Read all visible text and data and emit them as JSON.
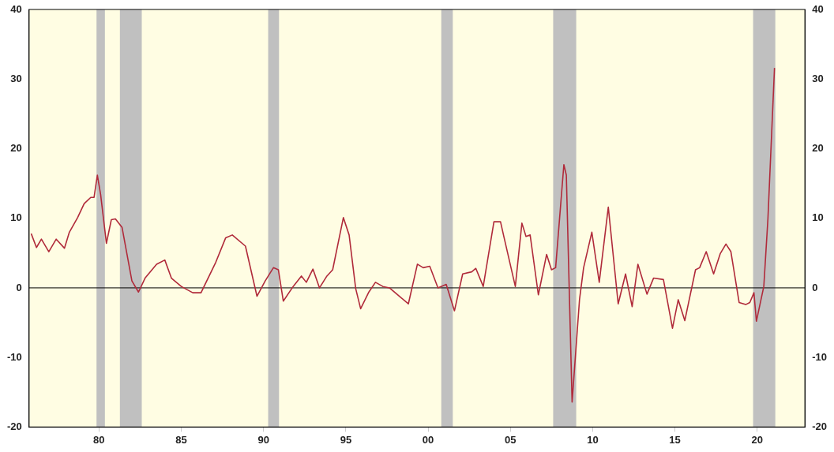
{
  "chart_data": {
    "type": "line",
    "x": [
      1975.88,
      1976.2,
      1976.5,
      1976.95,
      1977.4,
      1977.9,
      1978.2,
      1978.7,
      1979.1,
      1979.5,
      1979.7,
      1979.9,
      1980.1,
      1980.45,
      1980.75,
      1981.0,
      1981.4,
      1982.0,
      1982.4,
      1982.8,
      1983.5,
      1984.0,
      1984.4,
      1985.0,
      1985.7,
      1986.2,
      1987.1,
      1987.7,
      1988.1,
      1988.9,
      1989.6,
      1990.1,
      1990.6,
      1990.9,
      1991.2,
      1991.8,
      1992.3,
      1992.6,
      1993.0,
      1993.4,
      1993.85,
      1994.2,
      1994.85,
      1995.2,
      1995.6,
      1995.9,
      1996.4,
      1996.8,
      1997.25,
      1997.65,
      1998.3,
      1998.8,
      1999.35,
      1999.7,
      2000.1,
      2000.6,
      2001.1,
      2001.6,
      2002.1,
      2002.65,
      2002.9,
      2003.35,
      2004.0,
      2004.4,
      2004.6,
      2005.3,
      2005.7,
      2005.95,
      2006.2,
      2006.7,
      2007.2,
      2007.5,
      2007.75,
      2008.25,
      2008.4,
      2008.75,
      2009.2,
      2009.45,
      2009.95,
      2010.4,
      2010.95,
      2011.55,
      2012.0,
      2012.4,
      2012.75,
      2013.3,
      2013.7,
      2014.3,
      2014.85,
      2015.2,
      2015.6,
      2016.25,
      2016.5,
      2016.9,
      2017.35,
      2017.75,
      2018.1,
      2018.4,
      2018.9,
      2019.3,
      2019.55,
      2019.8,
      2019.95,
      2020.4,
      2020.65,
      2021.05
    ],
    "series": [
      {
        "color": "#b02a3a",
        "values": [
          7.8,
          5.8,
          7.0,
          5.2,
          7.0,
          5.7,
          8.0,
          10.1,
          12.1,
          13.0,
          13.0,
          16.2,
          13.4,
          6.4,
          9.8,
          9.9,
          8.7,
          1.0,
          -0.6,
          1.4,
          3.4,
          4.0,
          1.4,
          0.2,
          -0.7,
          -0.7,
          3.7,
          7.2,
          7.6,
          6.0,
          -1.2,
          1.0,
          2.9,
          2.6,
          -1.9,
          0.2,
          1.7,
          0.8,
          2.7,
          0.0,
          1.7,
          2.6,
          10.1,
          7.6,
          -0.1,
          -3.0,
          -0.6,
          0.8,
          0.2,
          0.0,
          -1.3,
          -2.3,
          3.4,
          2.9,
          3.1,
          0.0,
          0.5,
          -3.3,
          2.0,
          2.3,
          2.8,
          0.2,
          9.5,
          9.5,
          7.4,
          0.2,
          9.3,
          7.4,
          7.6,
          -1.0,
          4.8,
          2.6,
          2.9,
          17.7,
          16.2,
          -16.4,
          -1.7,
          2.9,
          8.0,
          0.8,
          11.6,
          -2.3,
          2.0,
          -2.7,
          3.4,
          -0.9,
          1.4,
          1.2,
          -5.8,
          -1.7,
          -4.7,
          2.6,
          2.9,
          5.2,
          2.0,
          4.9,
          6.3,
          5.2,
          -2.1,
          -2.4,
          -2.1,
          -0.7,
          -4.8,
          0.2,
          9.9,
          31.6
        ]
      }
    ],
    "xlim": [
      1975.75,
      2022.9
    ],
    "xticks": [
      {
        "value": 1980,
        "label": "80"
      },
      {
        "value": 1985,
        "label": "85"
      },
      {
        "value": 1990,
        "label": "90"
      },
      {
        "value": 1995,
        "label": "95"
      },
      {
        "value": 2000,
        "label": "00"
      },
      {
        "value": 2005,
        "label": "05"
      },
      {
        "value": 2010,
        "label": "10"
      },
      {
        "value": 2015,
        "label": "15"
      },
      {
        "value": 2020,
        "label": "20"
      }
    ],
    "ylim": [
      -20,
      40
    ],
    "yticks": [
      -20,
      -10,
      0,
      10,
      20,
      30,
      40
    ],
    "y2lim": [
      -20,
      40
    ],
    "y2ticks": [
      -20,
      -10,
      0,
      10,
      20,
      30,
      40
    ],
    "ref_lines": [
      {
        "axis": "y",
        "value": 0,
        "color": "#000000"
      }
    ],
    "bands": [
      {
        "axis": "x",
        "from": 1979.85,
        "to": 1980.36,
        "color": "#c0c0c0"
      },
      {
        "axis": "x",
        "from": 1981.27,
        "to": 1982.6,
        "color": "#c0c0c0"
      },
      {
        "axis": "x",
        "from": 1990.28,
        "to": 1990.94,
        "color": "#c0c0c0"
      },
      {
        "axis": "x",
        "from": 2000.8,
        "to": 2001.5,
        "color": "#c0c0c0"
      },
      {
        "axis": "x",
        "from": 2007.6,
        "to": 2009.0,
        "color": "#c0c0c0"
      },
      {
        "axis": "x",
        "from": 2019.75,
        "to": 2021.1,
        "color": "#c0c0c0"
      }
    ],
    "grid": false,
    "legend": false,
    "marker": "none",
    "line_style": "solid"
  }
}
